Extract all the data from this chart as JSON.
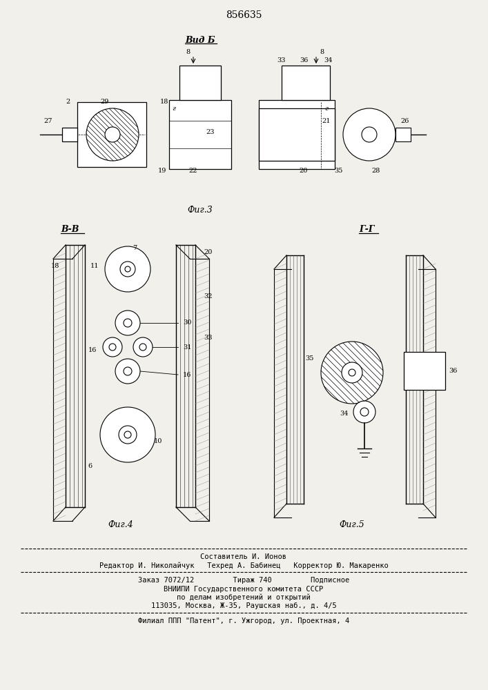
{
  "bg_color": "#f2f0eb",
  "patent_number": "856635",
  "fig3_label": "Фиг.3",
  "fig4_label": "Фиг.4",
  "fig5_label": "Фиг.5",
  "vid_b_label": "Вид Б",
  "bb_label": "В-В",
  "gg_label": "Г-Г",
  "footer_line1": "Составитель И. Ионов",
  "footer_line2": "Редактор И. Николайчук   Техред А. Бабинец   Корректор Ю. Макаренко",
  "footer_line3": "Заказ 7072/12         Тираж 740         Подписное",
  "footer_line4": "ВНИИПИ Государственного комитета СССР",
  "footer_line5": "по делам изобретений и открытий",
  "footer_line6": "113035, Москва, Ж-35, Раушская наб., д. 4/5",
  "footer_line7": "Филиал ППП \"Патент\", г. Ужгород, ул. Проектная, 4"
}
